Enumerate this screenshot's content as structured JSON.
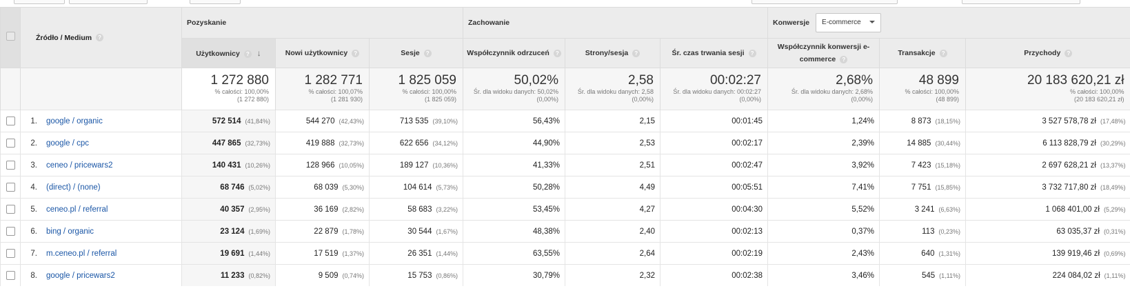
{
  "header": {
    "dimension": "Źródło / Medium",
    "groups": {
      "acquisition": "Pozyskanie",
      "behavior": "Zachowanie",
      "conversions": "Konwersje",
      "conversions_select": "E-commerce"
    },
    "columns": {
      "users": "Użytkownicy",
      "new_users": "Nowi użytkownicy",
      "sessions": "Sesje",
      "bounce": "Współczynnik odrzuceń",
      "pages": "Strony/sesja",
      "duration": "Śr. czas trwania sesji",
      "conv_rate_1": "Współczynnik konwersji e-",
      "conv_rate_2": "commerce",
      "transactions": "Transakcje",
      "revenue": "Przychody"
    }
  },
  "totals": {
    "users": {
      "v": "1 272 880",
      "s1": "% całości: 100,00%",
      "s2": "(1 272 880)"
    },
    "new_users": {
      "v": "1 282 771",
      "s1": "% całości: 100,07%",
      "s2": "(1 281 930)"
    },
    "sessions": {
      "v": "1 825 059",
      "s1": "% całości: 100,00%",
      "s2": "(1 825 059)"
    },
    "bounce": {
      "v": "50,02%",
      "s1": "Śr. dla widoku danych: 50,02%",
      "s2": "(0,00%)"
    },
    "pages": {
      "v": "2,58",
      "s1": "Śr. dla widoku danych: 2,58",
      "s2": "(0,00%)"
    },
    "duration": {
      "v": "00:02:27",
      "s1": "Śr. dla widoku danych: 00:02:27",
      "s2": "(0,00%)"
    },
    "conv": {
      "v": "2,68%",
      "s1": "Śr. dla widoku danych: 2,68%",
      "s2": "(0,00%)"
    },
    "transactions": {
      "v": "48 899",
      "s1": "% całości: 100,00%",
      "s2": "(48 899)"
    },
    "revenue": {
      "v": "20 183 620,21 zł",
      "s1": "% całości: 100,00%",
      "s2": "(20 183 620,21 zł)"
    }
  },
  "rows": [
    {
      "idx": "1.",
      "src": "google / organic",
      "users": "572 514",
      "users_p": "(41,84%)",
      "new": "544 270",
      "new_p": "(42,43%)",
      "ses": "713 535",
      "ses_p": "(39,10%)",
      "bounce": "56,43%",
      "pages": "2,15",
      "dur": "00:01:45",
      "conv": "1,24%",
      "tr": "8 873",
      "tr_p": "(18,15%)",
      "rev": "3 527 578,78 zł",
      "rev_p": "(17,48%)"
    },
    {
      "idx": "2.",
      "src": "google / cpc",
      "users": "447 865",
      "users_p": "(32,73%)",
      "new": "419 888",
      "new_p": "(32,73%)",
      "ses": "622 656",
      "ses_p": "(34,12%)",
      "bounce": "44,90%",
      "pages": "2,53",
      "dur": "00:02:17",
      "conv": "2,39%",
      "tr": "14 885",
      "tr_p": "(30,44%)",
      "rev": "6 113 828,79 zł",
      "rev_p": "(30,29%)"
    },
    {
      "idx": "3.",
      "src": "ceneo / pricewars2",
      "users": "140 431",
      "users_p": "(10,26%)",
      "new": "128 966",
      "new_p": "(10,05%)",
      "ses": "189 127",
      "ses_p": "(10,36%)",
      "bounce": "41,33%",
      "pages": "2,51",
      "dur": "00:02:47",
      "conv": "3,92%",
      "tr": "7 423",
      "tr_p": "(15,18%)",
      "rev": "2 697 628,21 zł",
      "rev_p": "(13,37%)"
    },
    {
      "idx": "4.",
      "src": "(direct) / (none)",
      "users": "68 746",
      "users_p": "(5,02%)",
      "new": "68 039",
      "new_p": "(5,30%)",
      "ses": "104 614",
      "ses_p": "(5,73%)",
      "bounce": "50,28%",
      "pages": "4,49",
      "dur": "00:05:51",
      "conv": "7,41%",
      "tr": "7 751",
      "tr_p": "(15,85%)",
      "rev": "3 732 717,80 zł",
      "rev_p": "(18,49%)"
    },
    {
      "idx": "5.",
      "src": "ceneo.pl / referral",
      "users": "40 357",
      "users_p": "(2,95%)",
      "new": "36 169",
      "new_p": "(2,82%)",
      "ses": "58 683",
      "ses_p": "(3,22%)",
      "bounce": "53,45%",
      "pages": "4,27",
      "dur": "00:04:30",
      "conv": "5,52%",
      "tr": "3 241",
      "tr_p": "(6,63%)",
      "rev": "1 068 401,00 zł",
      "rev_p": "(5,29%)"
    },
    {
      "idx": "6.",
      "src": "bing / organic",
      "users": "23 124",
      "users_p": "(1,69%)",
      "new": "22 879",
      "new_p": "(1,78%)",
      "ses": "30 544",
      "ses_p": "(1,67%)",
      "bounce": "48,38%",
      "pages": "2,40",
      "dur": "00:02:13",
      "conv": "0,37%",
      "tr": "113",
      "tr_p": "(0,23%)",
      "rev": "63 035,37 zł",
      "rev_p": "(0,31%)"
    },
    {
      "idx": "7.",
      "src": "m.ceneo.pl / referral",
      "users": "19 691",
      "users_p": "(1,44%)",
      "new": "17 519",
      "new_p": "(1,37%)",
      "ses": "26 351",
      "ses_p": "(1,44%)",
      "bounce": "63,55%",
      "pages": "2,64",
      "dur": "00:02:19",
      "conv": "2,43%",
      "tr": "640",
      "tr_p": "(1,31%)",
      "rev": "139 919,46 zł",
      "rev_p": "(0,69%)"
    },
    {
      "idx": "8.",
      "src": "google / pricewars2",
      "users": "11 233",
      "users_p": "(0,82%)",
      "new": "9 509",
      "new_p": "(0,74%)",
      "ses": "15 753",
      "ses_p": "(0,86%)",
      "bounce": "30,79%",
      "pages": "2,32",
      "dur": "00:02:38",
      "conv": "3,46%",
      "tr": "545",
      "tr_p": "(1,11%)",
      "rev": "224 084,02 zł",
      "rev_p": "(1,11%)"
    }
  ]
}
